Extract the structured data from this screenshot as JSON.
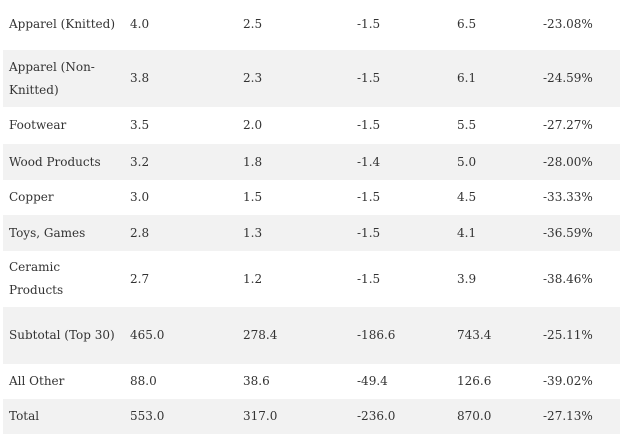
{
  "table": {
    "rows": [
      [
        "Apparel (Knitted)",
        "4.0",
        "2.5",
        "-1.5",
        "6.5",
        "-23.08%"
      ],
      [
        "Apparel (Non-Knitted)",
        "3.8",
        "2.3",
        "-1.5",
        "6.1",
        "-24.59%"
      ],
      [
        "Footwear",
        "3.5",
        "2.0",
        "-1.5",
        "5.5",
        "-27.27%"
      ],
      [
        "Wood Products",
        "3.2",
        "1.8",
        "-1.4",
        "5.0",
        "-28.00%"
      ],
      [
        "Copper",
        "3.0",
        "1.5",
        "-1.5",
        "4.5",
        "-33.33%"
      ],
      [
        "Toys, Games",
        "2.8",
        "1.3",
        "-1.5",
        "4.1",
        "-36.59%"
      ],
      [
        "Ceramic Products",
        "2.7",
        "1.2",
        "-1.5",
        "3.9",
        "-38.46%"
      ],
      [
        "Subtotal (Top 30)",
        "465.0",
        "278.4",
        "-186.6",
        "743.4",
        "-25.11%"
      ],
      [
        "All Other",
        "88.0",
        "38.6",
        "-49.4",
        "126.6",
        "-39.02%"
      ],
      [
        "Total",
        "553.0",
        "317.0",
        "-236.0",
        "870.0",
        "-27.13%"
      ]
    ]
  }
}
